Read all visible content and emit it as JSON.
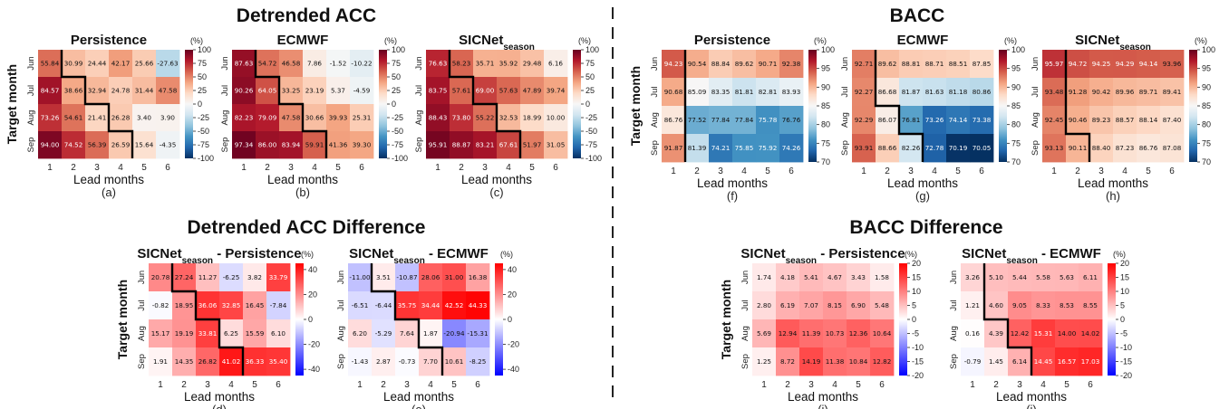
{
  "section_titles": {
    "detrended_acc": "Detrended ACC",
    "bacc": "BACC",
    "detrended_acc_diff": "Detrended ACC Difference",
    "bacc_diff": "BACC Difference"
  },
  "chart_data": [
    {
      "id": "a",
      "type": "heatmap",
      "letter": "(a)",
      "title": [
        {
          "t": "Persistence",
          "sub": false
        }
      ],
      "ylabel": "Target month",
      "xlabel": "Lead months",
      "x": [
        "1",
        "2",
        "3",
        "4",
        "5",
        "6"
      ],
      "y": [
        "Jun",
        "Jul",
        "Aug",
        "Sep"
      ],
      "values": [
        [
          55.84,
          30.99,
          24.44,
          42.17,
          25.66,
          -27.63
        ],
        [
          84.57,
          38.66,
          32.94,
          24.78,
          31.44,
          47.58
        ],
        [
          73.26,
          54.61,
          21.41,
          26.28,
          3.4,
          3.9
        ],
        [
          94.0,
          74.52,
          56.39,
          26.59,
          15.64,
          -4.35
        ]
      ],
      "colormap": "RdBu_r",
      "vmin": -100,
      "vmax": 100,
      "colorbar_ticks": [
        "100",
        "75",
        "50",
        "25",
        "0",
        "-25",
        "-50",
        "-75",
        "-100"
      ],
      "unit": "(%)",
      "boundary_lead": [
        1,
        2,
        3,
        4
      ]
    },
    {
      "id": "b",
      "type": "heatmap",
      "letter": "(b)",
      "title": [
        {
          "t": "ECMWF",
          "sub": false
        }
      ],
      "ylabel": "",
      "xlabel": "Lead months",
      "x": [
        "1",
        "2",
        "3",
        "4",
        "5",
        "6"
      ],
      "y": [
        "Jun",
        "Jul",
        "Aug",
        "Sep"
      ],
      "values": [
        [
          87.63,
          54.72,
          46.58,
          7.86,
          -1.52,
          -10.22
        ],
        [
          90.26,
          64.05,
          33.25,
          23.19,
          5.37,
          -4.59
        ],
        [
          82.23,
          79.09,
          47.58,
          30.66,
          39.93,
          25.31
        ],
        [
          97.34,
          86.0,
          83.94,
          59.91,
          41.36,
          39.3
        ]
      ],
      "colormap": "RdBu_r",
      "vmin": -100,
      "vmax": 100,
      "colorbar_ticks": [
        "100",
        "75",
        "50",
        "25",
        "0",
        "-25",
        "-50",
        "-75",
        "-100"
      ],
      "unit": "(%)",
      "boundary_lead": [
        1,
        2,
        3,
        4
      ]
    },
    {
      "id": "c",
      "type": "heatmap",
      "letter": "(c)",
      "title": [
        {
          "t": "SICNet",
          "sub": false
        },
        {
          "t": "season",
          "sub": true
        }
      ],
      "ylabel": "",
      "xlabel": "Lead months",
      "x": [
        "1",
        "2",
        "3",
        "4",
        "5",
        "6"
      ],
      "y": [
        "Jun",
        "Jul",
        "Aug",
        "Sep"
      ],
      "values": [
        [
          76.63,
          58.23,
          35.71,
          35.92,
          29.48,
          6.16
        ],
        [
          83.75,
          57.61,
          69.0,
          57.63,
          47.89,
          39.74
        ],
        [
          88.43,
          73.8,
          55.22,
          32.53,
          18.99,
          10.0
        ],
        [
          95.91,
          88.87,
          83.21,
          67.61,
          51.97,
          31.05
        ]
      ],
      "colormap": "RdBu_r",
      "vmin": -100,
      "vmax": 100,
      "colorbar_ticks": [
        "100",
        "75",
        "50",
        "25",
        "0",
        "-25",
        "-50",
        "-75",
        "-100"
      ],
      "unit": "(%)",
      "boundary_lead": [
        1,
        2,
        3,
        4
      ]
    },
    {
      "id": "f",
      "type": "heatmap",
      "letter": "(f)",
      "title": [
        {
          "t": "Persistence",
          "sub": false
        }
      ],
      "ylabel": "Target month",
      "xlabel": "Lead months",
      "x": [
        "1",
        "2",
        "3",
        "4",
        "5",
        "6"
      ],
      "y": [
        "Jun",
        "Jul",
        "Aug",
        "Sep"
      ],
      "values": [
        [
          94.23,
          90.54,
          88.84,
          89.62,
          90.71,
          92.38
        ],
        [
          90.68,
          85.09,
          83.35,
          81.81,
          82.81,
          83.93
        ],
        [
          86.76,
          77.52,
          77.84,
          77.84,
          75.78,
          76.76
        ],
        [
          91.87,
          81.39,
          74.21,
          75.85,
          75.92,
          74.26
        ]
      ],
      "colormap": "RdBu_r",
      "vmin": 70,
      "vmax": 100,
      "colorbar_ticks": [
        "100",
        "95",
        "90",
        "85",
        "80",
        "75",
        "70"
      ],
      "unit": "(%)",
      "boundary_lead": [
        1,
        1,
        1,
        1
      ]
    },
    {
      "id": "g",
      "type": "heatmap",
      "letter": "(g)",
      "title": [
        {
          "t": "ECMWF",
          "sub": false
        }
      ],
      "ylabel": "",
      "xlabel": "Lead months",
      "x": [
        "1",
        "2",
        "3",
        "4",
        "5",
        "6"
      ],
      "y": [
        "Jun",
        "Jul",
        "Aug",
        "Sep"
      ],
      "values": [
        [
          92.71,
          89.62,
          88.81,
          88.71,
          88.51,
          87.85
        ],
        [
          92.27,
          86.68,
          81.87,
          81.63,
          81.18,
          80.86
        ],
        [
          92.29,
          86.07,
          76.81,
          73.26,
          74.14,
          73.38
        ],
        [
          93.91,
          88.66,
          82.26,
          72.78,
          70.19,
          70.05
        ]
      ],
      "colormap": "RdBu_r",
      "vmin": 70,
      "vmax": 100,
      "colorbar_ticks": [
        "100",
        "95",
        "90",
        "85",
        "80",
        "75",
        "70"
      ],
      "unit": "(%)",
      "boundary_lead": [
        1,
        1,
        2,
        3
      ]
    },
    {
      "id": "h",
      "type": "heatmap",
      "letter": "(h)",
      "title": [
        {
          "t": "SICNet",
          "sub": false
        },
        {
          "t": "season",
          "sub": true
        }
      ],
      "ylabel": "",
      "xlabel": "Lead months",
      "x": [
        "1",
        "2",
        "3",
        "4",
        "5",
        "6"
      ],
      "y": [
        "Jun",
        "Jul",
        "Aug",
        "Sep"
      ],
      "values": [
        [
          95.97,
          94.72,
          94.25,
          94.29,
          94.14,
          93.96
        ],
        [
          93.48,
          91.28,
          90.42,
          89.96,
          89.71,
          89.41
        ],
        [
          92.45,
          90.46,
          89.23,
          88.57,
          88.14,
          87.4
        ],
        [
          93.13,
          90.11,
          88.4,
          87.23,
          86.76,
          87.08
        ]
      ],
      "colormap": "RdBu_r",
      "vmin": 70,
      "vmax": 100,
      "colorbar_ticks": [
        "100",
        "95",
        "90",
        "85",
        "80",
        "75",
        "70"
      ],
      "unit": "(%)",
      "boundary_lead": [
        1,
        1,
        1,
        2
      ]
    },
    {
      "id": "d",
      "type": "heatmap",
      "letter": "(d)",
      "title": [
        {
          "t": "SICNet",
          "sub": false
        },
        {
          "t": "season",
          "sub": true
        },
        {
          "t": " - Persistence",
          "sub": false
        }
      ],
      "ylabel": "Target month",
      "xlabel": "Lead months",
      "x": [
        "1",
        "2",
        "3",
        "4",
        "5",
        "6"
      ],
      "y": [
        "Jun",
        "Jul",
        "Aug",
        "Sep"
      ],
      "values": [
        [
          20.78,
          27.24,
          11.27,
          -6.25,
          3.82,
          33.79
        ],
        [
          -0.82,
          18.95,
          36.06,
          32.85,
          16.45,
          -7.84
        ],
        [
          15.17,
          19.19,
          33.81,
          6.25,
          15.59,
          6.1
        ],
        [
          1.91,
          14.35,
          26.82,
          41.02,
          36.33,
          35.4
        ]
      ],
      "colormap": "bwr",
      "vmin": -45,
      "vmax": 45,
      "colorbar_ticks": [
        "40",
        "20",
        "0",
        "-20",
        "-40"
      ],
      "unit": "(%)",
      "boundary_lead": [
        1,
        2,
        3,
        4
      ]
    },
    {
      "id": "e",
      "type": "heatmap",
      "letter": "(e)",
      "title": [
        {
          "t": "SICNet",
          "sub": false
        },
        {
          "t": "season",
          "sub": true
        },
        {
          "t": " - ECMWF",
          "sub": false
        }
      ],
      "ylabel": "",
      "xlabel": "Lead months",
      "x": [
        "1",
        "2",
        "3",
        "4",
        "5",
        "6"
      ],
      "y": [
        "Jun",
        "Jul",
        "Aug",
        "Sep"
      ],
      "values": [
        [
          -11.0,
          3.51,
          -10.87,
          28.06,
          31.0,
          16.38
        ],
        [
          -6.51,
          -6.44,
          35.75,
          34.44,
          42.52,
          44.33
        ],
        [
          6.2,
          -5.29,
          7.64,
          1.87,
          -20.94,
          -15.31
        ],
        [
          -1.43,
          2.87,
          -0.73,
          7.7,
          10.61,
          -8.25
        ]
      ],
      "colormap": "bwr",
      "vmin": -45,
      "vmax": 45,
      "colorbar_ticks": [
        "40",
        "20",
        "0",
        "-20",
        "-40"
      ],
      "unit": "(%)",
      "boundary_lead": [
        1,
        2,
        3,
        4
      ]
    },
    {
      "id": "i",
      "type": "heatmap",
      "letter": "(i)",
      "title": [
        {
          "t": "SICNet",
          "sub": false
        },
        {
          "t": "season",
          "sub": true
        },
        {
          "t": " - Persistence",
          "sub": false
        }
      ],
      "ylabel": "Target month",
      "xlabel": "Lead months",
      "x": [
        "1",
        "2",
        "3",
        "4",
        "5",
        "6"
      ],
      "y": [
        "Jun",
        "Jul",
        "Aug",
        "Sep"
      ],
      "values": [
        [
          1.74,
          4.18,
          5.41,
          4.67,
          3.43,
          1.58
        ],
        [
          2.8,
          6.19,
          7.07,
          8.15,
          6.9,
          5.48
        ],
        [
          5.69,
          12.94,
          11.39,
          10.73,
          12.36,
          10.64
        ],
        [
          1.25,
          8.72,
          14.19,
          11.38,
          10.84,
          12.82
        ]
      ],
      "colormap": "bwr",
      "vmin": -20,
      "vmax": 20,
      "colorbar_ticks": [
        "20",
        "15",
        "10",
        "5",
        "0",
        "-5",
        "-10",
        "-15",
        "-20"
      ],
      "unit": "(%)",
      "boundary_lead": [
        0,
        0,
        0,
        0
      ]
    },
    {
      "id": "j",
      "type": "heatmap",
      "letter": "(j)",
      "title": [
        {
          "t": "SICNet",
          "sub": false
        },
        {
          "t": "season",
          "sub": true
        },
        {
          "t": " - ECMWF",
          "sub": false
        }
      ],
      "ylabel": "",
      "xlabel": "Lead months",
      "x": [
        "1",
        "2",
        "3",
        "4",
        "5",
        "6"
      ],
      "y": [
        "Jun",
        "Jul",
        "Aug",
        "Sep"
      ],
      "values": [
        [
          3.26,
          5.1,
          5.44,
          5.58,
          5.63,
          6.11
        ],
        [
          1.21,
          4.6,
          9.05,
          8.33,
          8.53,
          8.55
        ],
        [
          0.16,
          4.39,
          12.42,
          15.31,
          14.0,
          14.02
        ],
        [
          -0.79,
          1.45,
          6.14,
          14.45,
          16.57,
          17.03
        ]
      ],
      "colormap": "bwr",
      "vmin": -20,
      "vmax": 20,
      "colorbar_ticks": [
        "20",
        "15",
        "10",
        "5",
        "0",
        "-5",
        "-10",
        "-15",
        "-20"
      ],
      "unit": "(%)",
      "boundary_lead": [
        1,
        1,
        2,
        3
      ]
    }
  ]
}
